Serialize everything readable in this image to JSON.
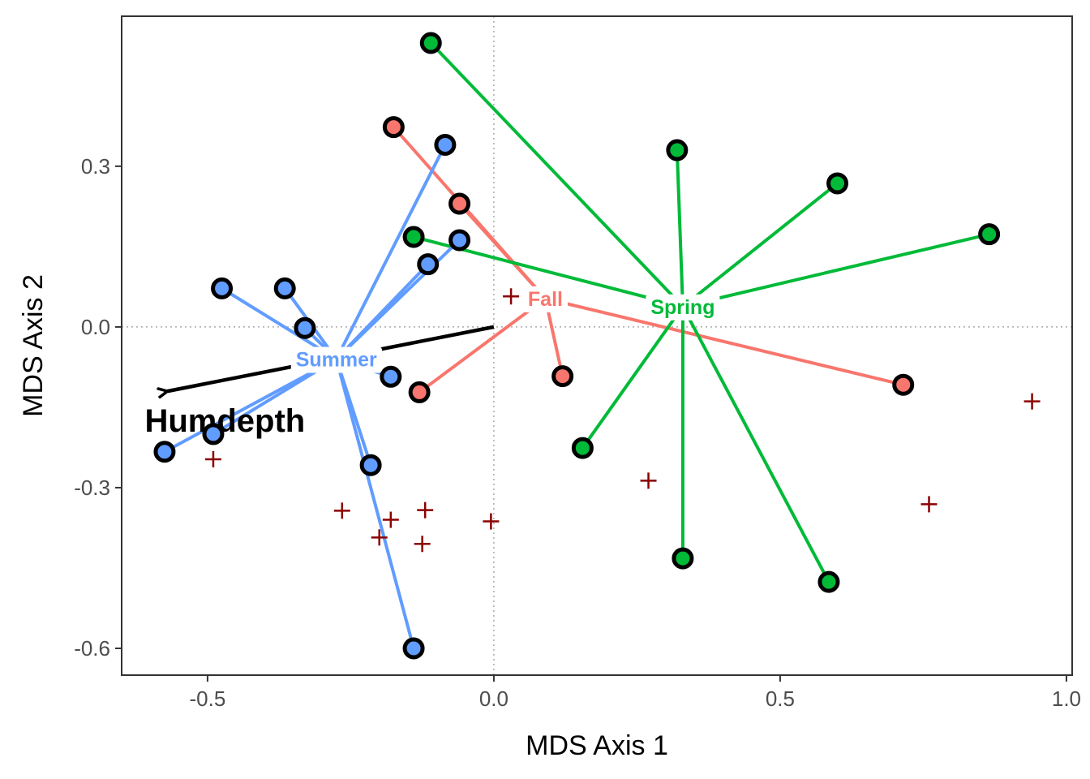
{
  "chart_data": {
    "type": "scatter",
    "xlabel": "MDS Axis 1",
    "ylabel": "MDS Axis 2",
    "xlim": [
      -0.65,
      1.01
    ],
    "ylim": [
      -0.65,
      0.58
    ],
    "x_ticks": [
      -0.5,
      0.0,
      0.5,
      1.0
    ],
    "x_tick_labels": [
      "-0.5",
      "0.0",
      "0.5",
      "1.0"
    ],
    "y_ticks": [
      -0.6,
      -0.3,
      0.0,
      0.3
    ],
    "y_tick_labels": [
      "-0.6",
      "-0.3",
      "0.0",
      "0.3"
    ],
    "grid": false,
    "reference_lines": {
      "x": 0.0,
      "y": 0.0,
      "style": "dotted"
    },
    "groups": [
      {
        "name": "Fall",
        "color": "#F8766D",
        "centroid": [
          0.09,
          0.053
        ],
        "points": [
          [
            -0.175,
            0.373
          ],
          [
            -0.06,
            0.23
          ],
          [
            0.12,
            -0.092
          ],
          [
            0.715,
            -0.108
          ],
          [
            -0.13,
            -0.122
          ]
        ]
      },
      {
        "name": "Spring",
        "color": "#00BA38",
        "centroid": [
          0.33,
          0.038
        ],
        "points": [
          [
            -0.11,
            0.53
          ],
          [
            0.32,
            0.33
          ],
          [
            0.6,
            0.268
          ],
          [
            0.865,
            0.173
          ],
          [
            -0.14,
            0.168
          ],
          [
            0.155,
            -0.226
          ],
          [
            0.33,
            -0.432
          ],
          [
            0.585,
            -0.476
          ]
        ]
      },
      {
        "name": "Summer",
        "color": "#619CFF",
        "centroid": [
          -0.275,
          -0.06
        ],
        "points": [
          [
            -0.085,
            0.34
          ],
          [
            -0.06,
            0.162
          ],
          [
            -0.115,
            0.117
          ],
          [
            -0.475,
            0.072
          ],
          [
            -0.365,
            0.072
          ],
          [
            -0.33,
            -0.002
          ],
          [
            -0.18,
            -0.093
          ],
          [
            -0.49,
            -0.2
          ],
          [
            -0.575,
            -0.233
          ],
          [
            -0.215,
            -0.258
          ],
          [
            -0.14,
            -0.6
          ]
        ]
      }
    ],
    "species_points": {
      "marker": "+",
      "color": "#8B0000",
      "points": [
        [
          0.03,
          0.057
        ],
        [
          -0.49,
          -0.247
        ],
        [
          -0.265,
          -0.343
        ],
        [
          -0.18,
          -0.36
        ],
        [
          -0.12,
          -0.342
        ],
        [
          -0.2,
          -0.393
        ],
        [
          -0.125,
          -0.405
        ],
        [
          -0.005,
          -0.363
        ],
        [
          0.27,
          -0.287
        ],
        [
          0.76,
          -0.331
        ],
        [
          0.94,
          -0.139
        ]
      ]
    },
    "vectors": [
      {
        "name": "Humdepth",
        "from": [
          0.0,
          0.0
        ],
        "to": [
          -0.57,
          -0.12
        ],
        "color": "#000000"
      }
    ]
  }
}
